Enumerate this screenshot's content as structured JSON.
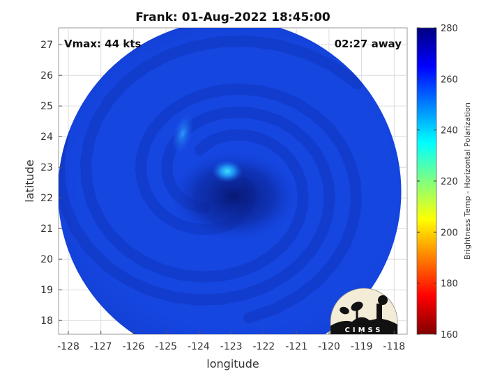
{
  "title": "Frank: 01-Aug-2022 18:45:00",
  "vmax_label": "Vmax: 44 kts",
  "time_label": "02:27 away",
  "xlabel": "longitude",
  "ylabel": "latitude",
  "x_ticks": [
    "-128",
    "-127",
    "-126",
    "-125",
    "-124",
    "-123",
    "-122",
    "-121",
    "-120",
    "-119",
    "-118"
  ],
  "x_tick_values": [
    -128,
    -127,
    -126,
    -125,
    -124,
    -123,
    -122,
    -121,
    -120,
    -119,
    -118
  ],
  "y_ticks": [
    "18",
    "19",
    "20",
    "21",
    "22",
    "23",
    "24",
    "25",
    "26",
    "27"
  ],
  "y_tick_values": [
    18,
    19,
    20,
    21,
    22,
    23,
    24,
    25,
    26,
    27
  ],
  "xlim": [
    -128.3,
    -117.6
  ],
  "ylim": [
    17.55,
    27.55
  ],
  "swath": {
    "center_lon": -123.05,
    "center_lat": 22.2,
    "radius_deg_lon": 5.5,
    "radius_deg_lat": 5.35
  },
  "eye": {
    "lon": -123.3,
    "lat": 22.5
  },
  "colorbar": {
    "label": "Brightness Temp - Horizontal Polarization",
    "min": 160,
    "max": 280,
    "ticks": [
      "160",
      "180",
      "200",
      "220",
      "240",
      "260",
      "280"
    ],
    "tick_values": [
      160,
      180,
      200,
      220,
      240,
      260,
      280
    ],
    "colormap": "jet",
    "colors": [
      "#800000",
      "#ff0000",
      "#ffff00",
      "#00ffff",
      "#0000ff",
      "#000080"
    ]
  },
  "logo_text": "CIMSS",
  "colors": {
    "background": "#ffffff",
    "grid": "#dcdcdc",
    "swath_base": "#1546e0",
    "swath_dark": "#0a1e8c",
    "swath_cyan": "#34c8ff"
  }
}
